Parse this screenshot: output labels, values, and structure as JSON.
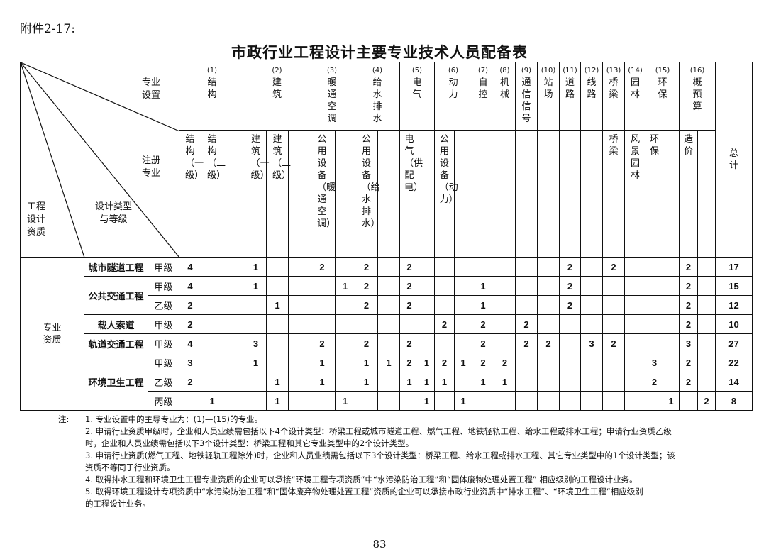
{
  "attachment": "附件2-17:",
  "title": "市政行业工程设计主要专业技术人员配备表",
  "corner": {
    "major_setup": "专业设置",
    "registered_major": "注册专业",
    "design_type": "设计类型与等级",
    "qualification": "工程设计资质"
  },
  "groups": [
    {
      "num": "(1)",
      "name": "结构",
      "subs": [
        "结构（一级）",
        "结构（二级）",
        ""
      ]
    },
    {
      "num": "(2)",
      "name": "建筑",
      "subs": [
        "建筑（一级）",
        "建筑（二级）",
        ""
      ]
    },
    {
      "num": "(3)",
      "name": "暖通空调",
      "subs": [
        "公用设备（暖通空调）",
        ""
      ]
    },
    {
      "num": "(4)",
      "name": "给水排水",
      "subs": [
        "公用设备（给水排水）",
        ""
      ]
    },
    {
      "num": "(5)",
      "name": "电气",
      "subs": [
        "电气（供配电）",
        ""
      ]
    },
    {
      "num": "(6)",
      "name": "动力",
      "subs": [
        "公用设备（动力）",
        ""
      ]
    },
    {
      "num": "(7)",
      "name": "自控",
      "subs": [
        ""
      ]
    },
    {
      "num": "(8)",
      "name": "机械",
      "subs": [
        ""
      ]
    },
    {
      "num": "(9)",
      "name": "通信信号",
      "subs": [
        ""
      ]
    },
    {
      "num": "(10)",
      "name": "站场",
      "subs": [
        ""
      ]
    },
    {
      "num": "(11)",
      "name": "道路",
      "subs": [
        ""
      ]
    },
    {
      "num": "(12)",
      "name": "线路",
      "subs": [
        ""
      ]
    },
    {
      "num": "(13)",
      "name": "桥梁",
      "subs": [
        "桥梁"
      ]
    },
    {
      "num": "(14)",
      "name": "园林",
      "subs": [
        "风景园林"
      ]
    },
    {
      "num": "(15)",
      "name": "环保",
      "subs": [
        "环保",
        ""
      ]
    },
    {
      "num": "(16)",
      "name": "概预算",
      "subs": [
        "造价",
        ""
      ]
    }
  ],
  "total_label": "总计",
  "qualification_label": "专业资质",
  "rows": [
    {
      "type": "城市隧道工程",
      "type_span": 1,
      "grade": "甲级",
      "values": [
        "4",
        "",
        "",
        "1",
        "",
        "",
        "2",
        "",
        "2",
        "",
        "2",
        "",
        "",
        "",
        "",
        "",
        "",
        "",
        "2",
        "",
        "2",
        "",
        "",
        "",
        "2",
        ""
      ],
      "total": "17"
    },
    {
      "type": "公共交通工程",
      "type_span": 2,
      "grade": "甲级",
      "values": [
        "4",
        "",
        "",
        "1",
        "",
        "",
        "",
        "1",
        "2",
        "",
        "2",
        "",
        "",
        "",
        "1",
        "",
        "",
        "",
        "2",
        "",
        "",
        "",
        "",
        "",
        "2",
        ""
      ],
      "total": "15"
    },
    {
      "type": "",
      "type_span": 0,
      "grade": "乙级",
      "values": [
        "2",
        "",
        "",
        "",
        "1",
        "",
        "",
        "",
        "2",
        "",
        "2",
        "",
        "",
        "",
        "1",
        "",
        "",
        "",
        "2",
        "",
        "",
        "",
        "",
        "",
        "2",
        ""
      ],
      "total": "12"
    },
    {
      "type": "载人索道",
      "type_span": 1,
      "grade": "甲级",
      "values": [
        "2",
        "",
        "",
        "",
        "",
        "",
        "",
        "",
        "",
        "",
        "",
        "",
        "2",
        "",
        "2",
        "",
        "2",
        "",
        "",
        "",
        "",
        "",
        "",
        "",
        "2",
        ""
      ],
      "total": "10"
    },
    {
      "type": "轨道交通工程",
      "type_span": 1,
      "grade": "甲级",
      "values": [
        "4",
        "",
        "",
        "3",
        "",
        "",
        "2",
        "",
        "2",
        "",
        "2",
        "",
        "",
        "",
        "2",
        "",
        "2",
        "2",
        "",
        "3",
        "2",
        "",
        "",
        "",
        "3",
        ""
      ],
      "total": "27"
    },
    {
      "type": "环境卫生工程",
      "type_span": 3,
      "grade": "甲级",
      "values": [
        "3",
        "",
        "",
        "1",
        "",
        "",
        "1",
        "",
        "1",
        "1",
        "2",
        "1",
        "2",
        "1",
        "2",
        "2",
        "",
        "",
        "",
        "",
        "",
        "",
        "3",
        "",
        "2",
        ""
      ],
      "total": "22"
    },
    {
      "type": "",
      "type_span": 0,
      "grade": "乙级",
      "values": [
        "2",
        "",
        "",
        "",
        "1",
        "",
        "1",
        "",
        "1",
        "",
        "1",
        "1",
        "1",
        "",
        "1",
        "1",
        "",
        "",
        "",
        "",
        "",
        "",
        "2",
        "",
        "2",
        ""
      ],
      "total": "14"
    },
    {
      "type": "",
      "type_span": 0,
      "grade": "丙级",
      "values": [
        "",
        "1",
        "",
        "",
        "1",
        "",
        "",
        "1",
        "",
        "",
        "",
        "1",
        "",
        "1",
        "",
        "",
        "",
        "",
        "",
        "",
        "",
        "",
        "",
        "1",
        "",
        "2"
      ],
      "total": "8"
    }
  ],
  "notes": {
    "label": "注:",
    "lines": [
      "1. 专业设置中的主导专业为：(1)—(15)的专业。",
      "2. 申请行业资质甲级时，企业和人员业绩需包括以下4个设计类型：桥梁工程或城市隧道工程、燃气工程、地铁轻轨工程、给水工程或排水工程；申请行业资质乙级",
      "时，企业和人员业绩需包括以下3个设计类型：桥梁工程和其它专业类型中的2个设计类型。",
      "3. 申请行业资质(燃气工程、地铁轻轨工程除外)时，企业和人员业绩需包括以下3个设计类型：桥梁工程、给水工程或排水工程、其它专业类型中的1个设计类型；该",
      "资质不等同于行业资质。",
      "4. 取得排水工程和环境卫生工程专业资质的企业可以承接“环境工程专项资质”中“水污染防治工程”和“固体废物处理处置工程” 相应级别的工程设计业务。",
      "5. 取得环境工程设计专项资质中“水污染防治工程”和“固体废弃物处理处置工程”资质的企业可以承接市政行业资质中“排水工程”、“环境卫生工程”相应级别",
      "的工程设计业务。"
    ]
  },
  "page_number": "83"
}
